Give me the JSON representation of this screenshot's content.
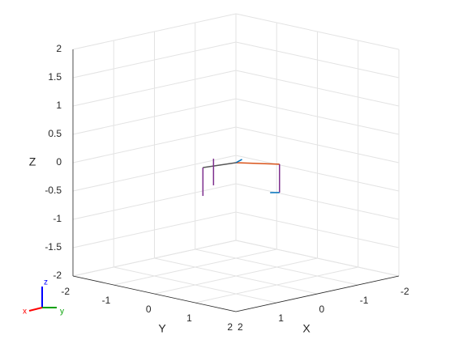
{
  "chart_data": {
    "type": "line3d",
    "xlabel": "X",
    "ylabel": "Y",
    "zlabel": "Z",
    "xlim": [
      -2,
      2
    ],
    "ylim": [
      -2,
      2
    ],
    "zlim": [
      -2,
      2
    ],
    "xticks": [
      -2,
      -1,
      0,
      1,
      2
    ],
    "yticks": [
      -2,
      -1,
      0,
      1,
      2
    ],
    "zticks": [
      -2,
      -1.5,
      -1,
      -0.5,
      0,
      0.5,
      1,
      1.5,
      2
    ],
    "grid": true,
    "series": [
      {
        "color": "#d95319",
        "x": [
          0,
          -0.45
        ],
        "y": [
          0,
          0.62
        ],
        "z": [
          0,
          0
        ]
      },
      {
        "color": "#7e2f8e",
        "x": [
          -0.45,
          -0.45
        ],
        "y": [
          0.62,
          0.62
        ],
        "z": [
          0,
          -0.5
        ]
      },
      {
        "color": "#0072bd",
        "x": [
          -0.45,
          -0.33
        ],
        "y": [
          0.62,
          0.51
        ],
        "z": [
          -0.5,
          -0.5
        ]
      },
      {
        "color": "#555555",
        "x": [
          0,
          0.68
        ],
        "y": [
          0,
          -0.13
        ],
        "z": [
          0,
          0
        ]
      },
      {
        "color": "#7e2f8e",
        "x": [
          0.68,
          0.68
        ],
        "y": [
          -0.13,
          -0.13
        ],
        "z": [
          0,
          -0.5
        ]
      },
      {
        "color": "#7e2f8e",
        "x": [
          0.05,
          0.05
        ],
        "y": [
          -0.5,
          -0.5
        ],
        "z": [
          0,
          -0.47
        ]
      },
      {
        "color": "#0072bd",
        "x": [
          0,
          -0.1
        ],
        "y": [
          0,
          0.05
        ],
        "z": [
          0,
          0.05
        ]
      }
    ],
    "triad": {
      "x": "x",
      "y": "y",
      "z": "z"
    }
  }
}
